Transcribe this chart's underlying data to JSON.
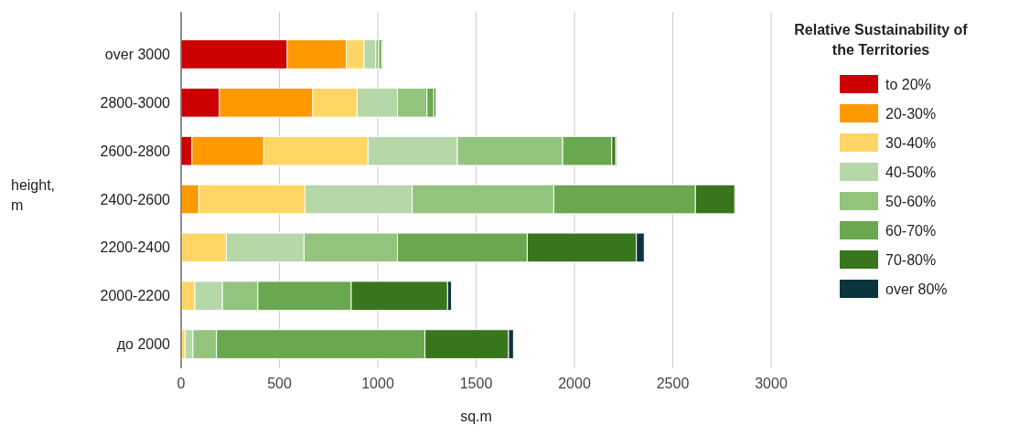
{
  "chart_data": {
    "type": "bar",
    "orientation": "horizontal",
    "stacked": true,
    "categories": [
      "over 3000",
      "2800-3000",
      "2600-2800",
      "2400-2600",
      "2200-2400",
      "2000-2200",
      "до 2000"
    ],
    "series": [
      {
        "name": "to 20%",
        "color": "#cc0000",
        "values": [
          540,
          195,
          55,
          0,
          0,
          0,
          0
        ]
      },
      {
        "name": "20-30%",
        "color": "#ff9900",
        "values": [
          300,
          475,
          365,
          90,
          0,
          0,
          0
        ]
      },
      {
        "name": "30-40%",
        "color": "#ffd666",
        "values": [
          90,
          225,
          530,
          540,
          230,
          70,
          20
        ]
      },
      {
        "name": "40-50%",
        "color": "#b6d7a8",
        "values": [
          60,
          205,
          455,
          545,
          395,
          140,
          40
        ]
      },
      {
        "name": "50-60%",
        "color": "#93c47d",
        "values": [
          15,
          150,
          535,
          720,
          475,
          180,
          120
        ]
      },
      {
        "name": "60-70%",
        "color": "#6aa84f",
        "values": [
          15,
          35,
          250,
          720,
          660,
          475,
          1060
        ]
      },
      {
        "name": "70-80%",
        "color": "#38761d",
        "values": [
          5,
          10,
          20,
          200,
          555,
          490,
          425
        ]
      },
      {
        "name": "over 80%",
        "color": "#0c343d",
        "values": [
          0,
          0,
          5,
          0,
          40,
          20,
          25
        ]
      }
    ],
    "xlim": [
      0,
      3000
    ],
    "xticks": [
      0,
      500,
      1000,
      1500,
      2000,
      2500,
      3000
    ],
    "xlabel": "sq.m",
    "ylabel": "height, m",
    "legend_title": "Relative Sustainability of the Territories",
    "grid": "x",
    "legend": "right"
  }
}
